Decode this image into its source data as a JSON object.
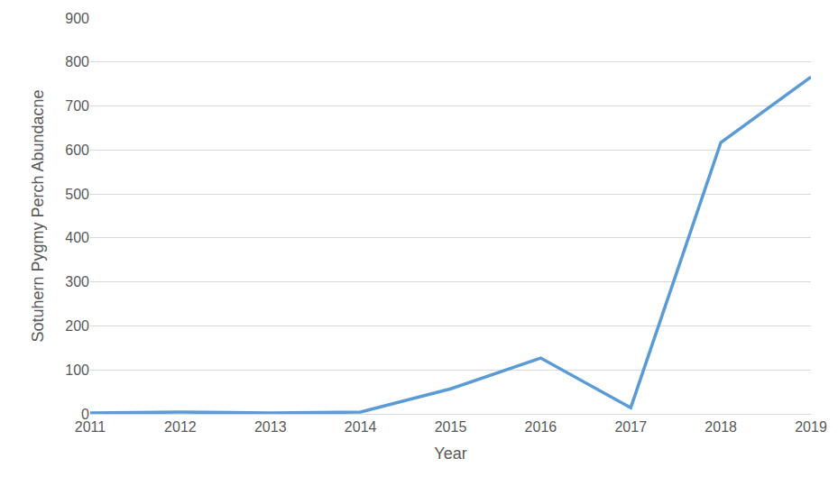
{
  "chart_data": {
    "type": "line",
    "x_title": "Year",
    "y_title": "Sotuhern Pygmy Perch Abundacne",
    "categories": [
      "2011",
      "2012",
      "2013",
      "2014",
      "2015",
      "2016",
      "2017",
      "2018",
      "2019"
    ],
    "values": [
      2,
      4,
      2,
      4,
      57,
      127,
      14,
      617,
      766
    ],
    "color": "#5b9bd5",
    "ylim": [
      0,
      900
    ],
    "yticks": [
      0,
      100,
      200,
      300,
      400,
      500,
      600,
      700,
      800,
      900
    ],
    "grid": true
  }
}
